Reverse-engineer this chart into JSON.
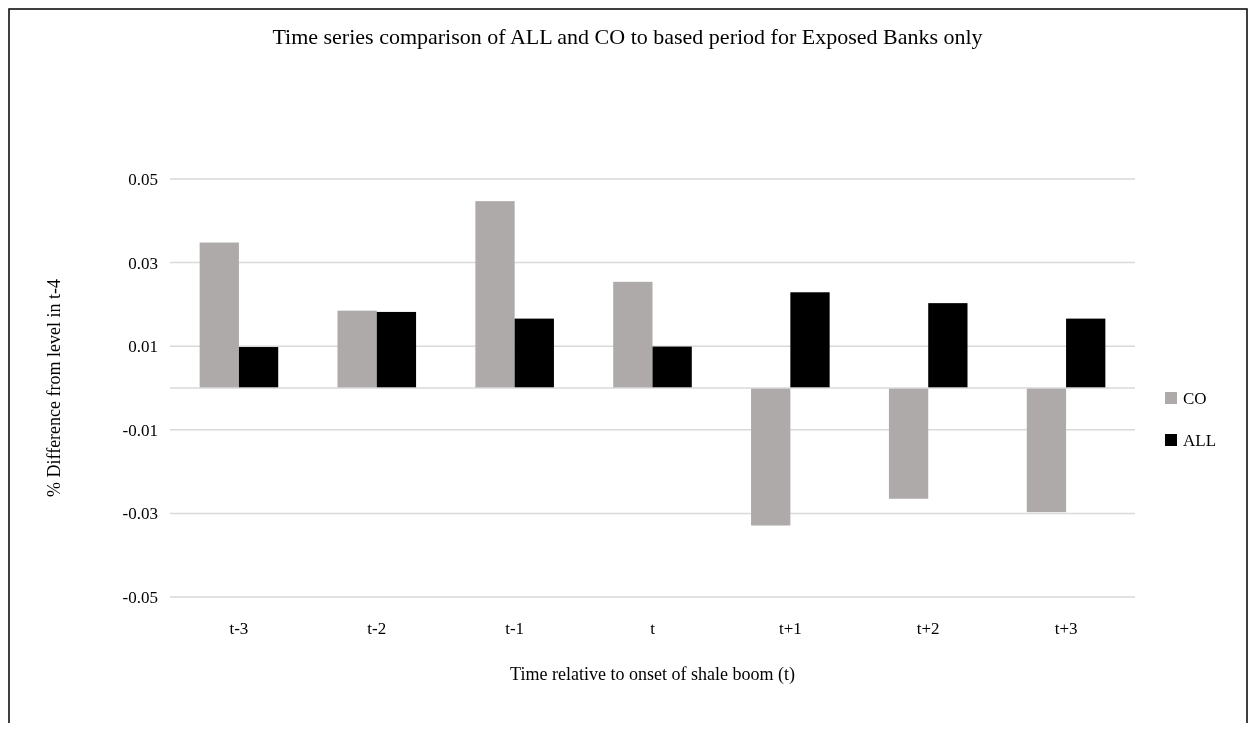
{
  "chart_data": {
    "type": "bar",
    "title": "Time series comparison of ALL and CO to based period for Exposed Banks only",
    "xlabel": "Time relative to onset of shale boom (t)",
    "ylabel": "% Difference from  level in t-4",
    "categories": [
      "t-3",
      "t-2",
      "t-1",
      "t",
      "t+1",
      "t+2",
      "t+3"
    ],
    "series": [
      {
        "name": "CO",
        "color": "#aeaaaa",
        "values": [
          0.0348,
          0.0185,
          0.0447,
          0.0254,
          -0.0329,
          -0.0265,
          -0.0297
        ]
      },
      {
        "name": "ALL",
        "color": "#000000",
        "values": [
          0.0098,
          0.0182,
          0.0166,
          0.0099,
          0.0229,
          0.0203,
          0.0166
        ]
      }
    ],
    "ylim": [
      -0.05,
      0.05
    ],
    "yticks": [
      0.05,
      0.03,
      0.01,
      -0.01,
      -0.03,
      -0.05
    ],
    "grid": "y",
    "legend": "right"
  }
}
